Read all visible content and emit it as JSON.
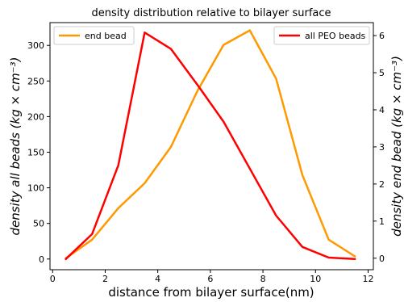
{
  "chart_data": {
    "type": "line",
    "title": "density distribution relative to bilayer surface",
    "xlabel": "distance from bilayer surface(nm)",
    "ylabel_left": "density all beads (kg × cm⁻³)",
    "ylabel_right": "density end bead (kg × cm⁻³)",
    "xlim": [
      -0.1,
      12.2
    ],
    "xticks": [
      0,
      2,
      4,
      6,
      8,
      10,
      12
    ],
    "ylim_left": [
      -15,
      332
    ],
    "yticks_left": [
      0,
      50,
      100,
      150,
      200,
      250,
      300
    ],
    "ylim_right": [
      -0.31,
      6.35
    ],
    "yticks_right": [
      0,
      1,
      2,
      3,
      4,
      5,
      6
    ],
    "grid": false,
    "series": [
      {
        "name": "end bead",
        "axis": "right",
        "color": "#ff9900",
        "x": [
          0.5,
          1.5,
          2.5,
          3.5,
          4.5,
          5.5,
          6.5,
          7.5,
          8.5,
          9.5,
          10.5,
          11.5
        ],
        "y": [
          0.0,
          0.5,
          1.35,
          2.02,
          3.0,
          4.5,
          5.75,
          6.14,
          4.84,
          2.24,
          0.5,
          0.05
        ],
        "legend_position": "top-left"
      },
      {
        "name": "all PEO beads",
        "axis": "left",
        "color": "#ff0000",
        "x": [
          0.5,
          1.5,
          2.5,
          3.5,
          4.5,
          5.5,
          6.5,
          7.5,
          8.5,
          9.5,
          10.5,
          11.5
        ],
        "y": [
          0,
          35,
          132,
          318,
          295,
          245,
          193,
          127,
          61,
          17,
          2,
          0
        ],
        "legend_position": "top-right"
      }
    ]
  }
}
